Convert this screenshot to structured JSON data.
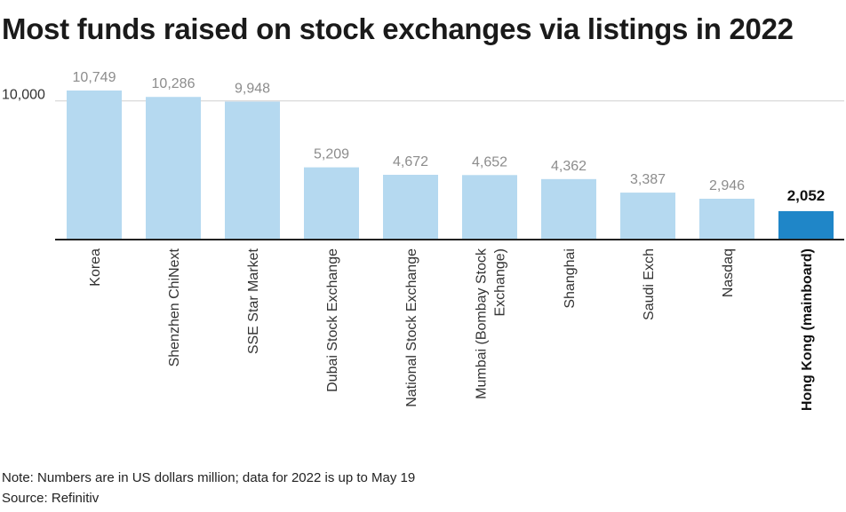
{
  "header": {
    "title": "Most funds raised on stock exchanges via listings in 2022"
  },
  "chart_data": {
    "type": "bar",
    "title": "Most funds raised on stock exchanges via listings in 2022",
    "categories": [
      "Korea",
      "Shenzhen ChiNext",
      "SSE Star Market",
      "Dubai Stock Exchange",
      "National Stock Exchange",
      "Mumbai (Bombay Stock Exchange)",
      "Shanghai",
      "Saudi Exch",
      "Nasdaq",
      "Hong Kong (mainboard)"
    ],
    "category_lines": [
      [
        "Korea"
      ],
      [
        "Shenzhen ChiNext"
      ],
      [
        "SSE Star Market"
      ],
      [
        "Dubai Stock Exchange"
      ],
      [
        "National Stock Exchange"
      ],
      [
        "Mumbai (Bombay Stock",
        "Exchange)"
      ],
      [
        "Shanghai"
      ],
      [
        "Saudi Exch"
      ],
      [
        "Nasdaq"
      ],
      [
        "Hong Kong (mainboard)"
      ]
    ],
    "values": [
      10749,
      10286,
      9948,
      5209,
      4672,
      4652,
      4362,
      3387,
      2946,
      2052
    ],
    "value_labels": [
      "10,749",
      "10,286",
      "9,948",
      "5,209",
      "4,672",
      "4,652",
      "4,362",
      "3,387",
      "2,946",
      "2,052"
    ],
    "highlight_index": 9,
    "yticks": [
      10000
    ],
    "ytick_labels": [
      "10,000"
    ],
    "ylim": [
      0,
      10749
    ],
    "xlabel": "",
    "ylabel": "",
    "grid": true,
    "colors": {
      "bar": "#b5d9f0",
      "highlight": "#1f86c8",
      "value_label": "#8c8c8c",
      "highlight_label": "#111111",
      "axis": "#222222",
      "grid": "#cfcfcf",
      "category_text": "#333333"
    }
  },
  "footer": {
    "note": "Note: Numbers are in US dollars million; data for 2022 is up to May 19",
    "source": "Source: Refinitiv"
  }
}
